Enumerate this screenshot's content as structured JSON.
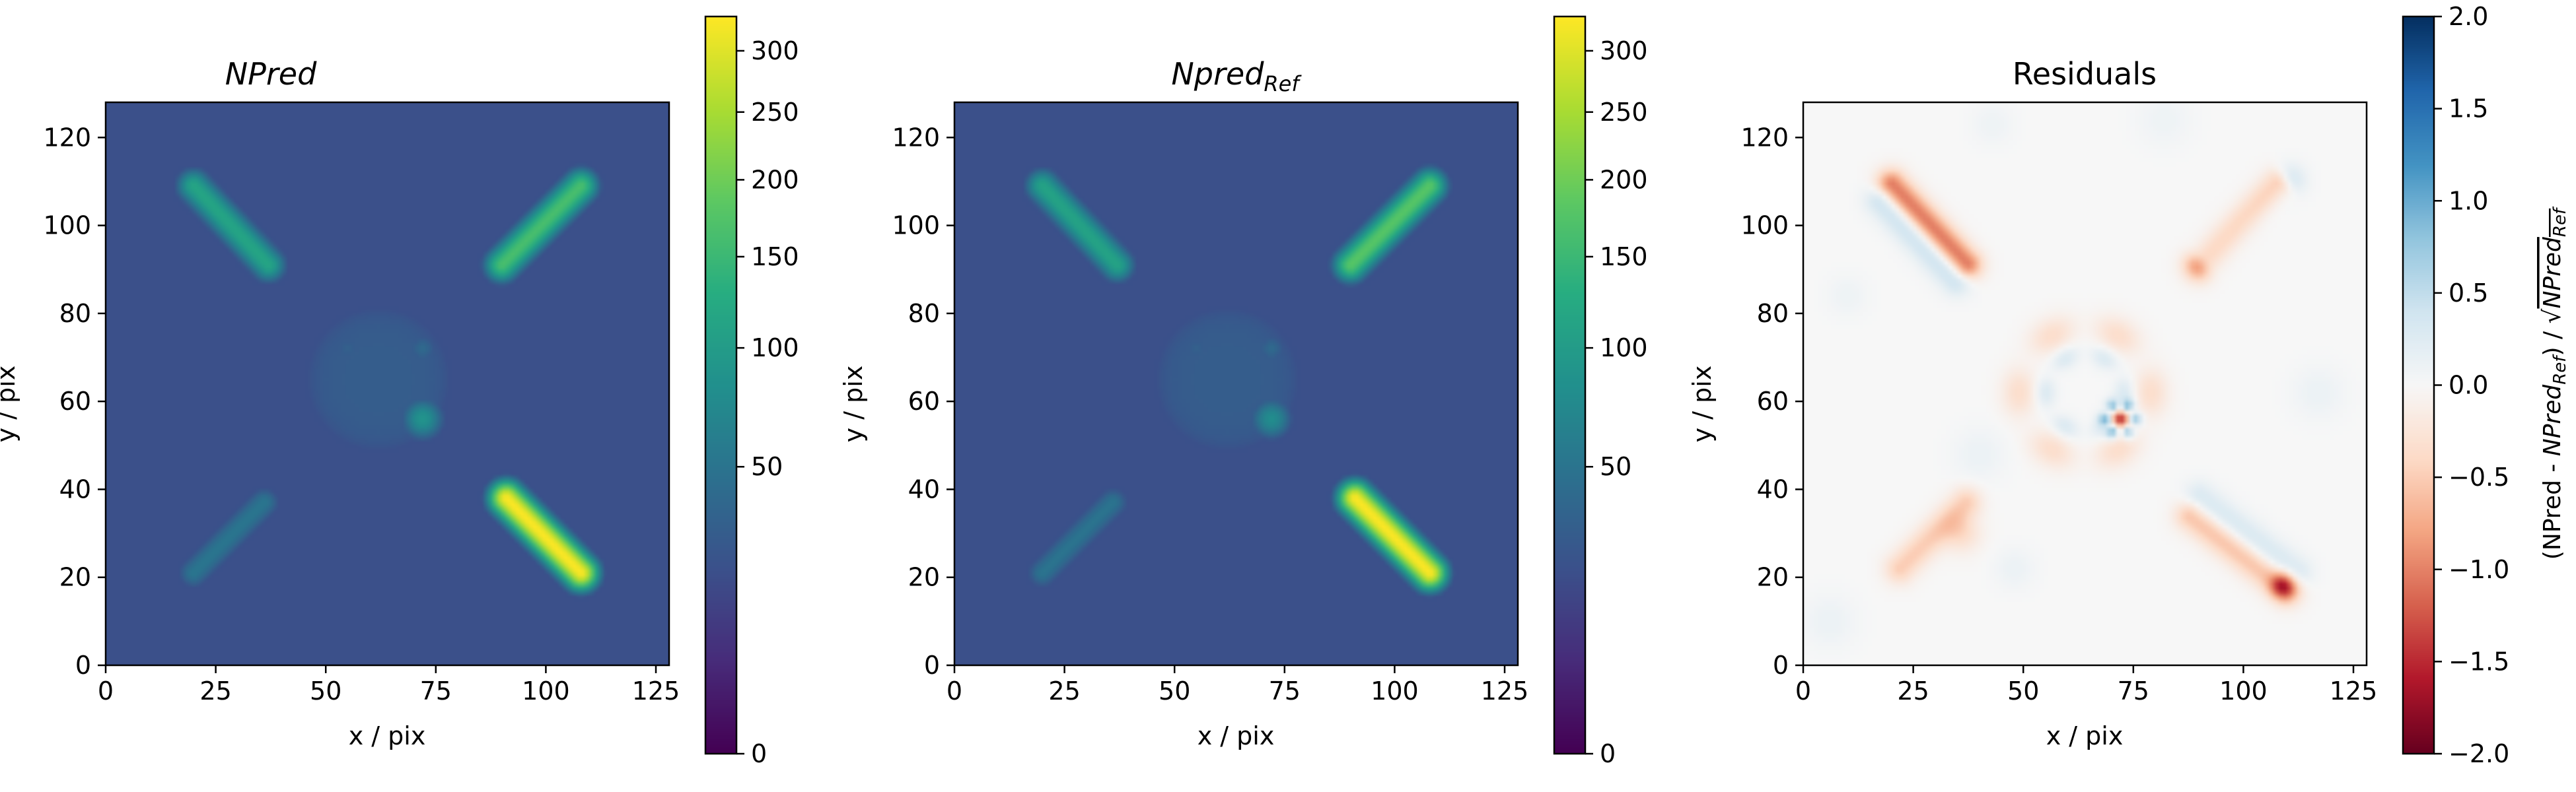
{
  "chart_data": [
    {
      "type": "heatmap",
      "title": "NPred",
      "title_style": "italic",
      "xlabel": "x / pix",
      "ylabel": "y / pix",
      "xlim": [
        0,
        128
      ],
      "ylim": [
        0,
        128
      ],
      "xticks": [
        0,
        25,
        50,
        75,
        100,
        125
      ],
      "yticks": [
        0,
        20,
        40,
        60,
        80,
        100,
        120
      ],
      "colormap": "viridis",
      "colorbar": {
        "scale": "sqrt",
        "range": [
          0,
          330
        ],
        "ticks": [
          0,
          50,
          100,
          150,
          200,
          250,
          300
        ]
      },
      "background_value": 20,
      "features": [
        {
          "shape": "bar",
          "from": [
            20,
            109
          ],
          "to": [
            37,
            91
          ],
          "peak": 115
        },
        {
          "shape": "bar",
          "from": [
            90,
            91
          ],
          "to": [
            108,
            109
          ],
          "peak": 165
        },
        {
          "shape": "bar",
          "from": [
            20,
            21
          ],
          "to": [
            36,
            37
          ],
          "peak": 52
        },
        {
          "shape": "bar",
          "from": [
            91,
            38
          ],
          "to": [
            108,
            21
          ],
          "peak": 330
        },
        {
          "shape": "disk",
          "center": [
            62,
            65
          ],
          "radius": 18,
          "peak": 29
        },
        {
          "shape": "spot",
          "center": [
            72,
            56
          ],
          "radius": 3,
          "peak": 90
        },
        {
          "shape": "spot",
          "center": [
            72,
            72
          ],
          "radius": 2.5,
          "peak": 40
        },
        {
          "shape": "spot",
          "center": [
            55,
            72
          ],
          "radius": 2.5,
          "peak": 33
        }
      ]
    },
    {
      "type": "heatmap",
      "title_base": "Npred",
      "title_sub": "Ref",
      "title_style": "italic",
      "xlabel": "x / pix",
      "ylabel": "y / pix",
      "xlim": [
        0,
        128
      ],
      "ylim": [
        0,
        128
      ],
      "xticks": [
        0,
        25,
        50,
        75,
        100,
        125
      ],
      "yticks": [
        0,
        20,
        40,
        60,
        80,
        100,
        120
      ],
      "colormap": "viridis",
      "colorbar": {
        "scale": "sqrt",
        "range": [
          0,
          330
        ],
        "ticks": [
          0,
          50,
          100,
          150,
          200,
          250,
          300
        ]
      },
      "background_value": 20,
      "features": [
        {
          "shape": "bar",
          "from": [
            20,
            109
          ],
          "to": [
            37,
            91
          ],
          "peak": 112
        },
        {
          "shape": "bar",
          "from": [
            90,
            91
          ],
          "to": [
            108,
            109
          ],
          "peak": 180
        },
        {
          "shape": "bar",
          "from": [
            20,
            21
          ],
          "to": [
            36,
            37
          ],
          "peak": 50
        },
        {
          "shape": "bar",
          "from": [
            91,
            38
          ],
          "to": [
            108,
            21
          ],
          "peak": 330
        },
        {
          "shape": "disk",
          "center": [
            62,
            65
          ],
          "radius": 18,
          "peak": 29
        },
        {
          "shape": "spot",
          "center": [
            72,
            56
          ],
          "radius": 3,
          "peak": 80
        },
        {
          "shape": "spot",
          "center": [
            72,
            72
          ],
          "radius": 2.5,
          "peak": 40
        },
        {
          "shape": "spot",
          "center": [
            55,
            72
          ],
          "radius": 2.5,
          "peak": 33
        }
      ]
    },
    {
      "type": "heatmap",
      "title": "Residuals",
      "title_style": "normal",
      "xlabel": "x / pix",
      "ylabel": "y / pix",
      "xlim": [
        0,
        128
      ],
      "ylim": [
        0,
        128
      ],
      "xticks": [
        0,
        25,
        50,
        75,
        100,
        125
      ],
      "yticks": [
        0,
        20,
        40,
        60,
        80,
        100,
        120
      ],
      "colormap": "RdBu",
      "colorbar": {
        "scale": "linear",
        "range": [
          -2.0,
          2.0
        ],
        "ticks": [
          -2.0,
          -1.5,
          -1.0,
          -0.5,
          0.0,
          0.5,
          1.0,
          1.5,
          2.0
        ],
        "tick_labels": [
          "−2.0",
          "−1.5",
          "−1.0",
          "−0.5",
          "0.0",
          "0.5",
          "1.0",
          "1.5",
          "2.0"
        ],
        "label_pre": "(NPred - ",
        "label_num": "NPred",
        "label_sub": "Ref",
        "label_mid": ") / √",
        "label_den": "NPred",
        "label_den_sub": "Ref"
      },
      "background_value": 0,
      "features": [
        {
          "shape": "bar",
          "from": [
            20,
            109
          ],
          "to": [
            37,
            91
          ],
          "peak": -1.2
        },
        {
          "shape": "bar",
          "from": [
            18,
            106
          ],
          "to": [
            35,
            88
          ],
          "peak": 0.6
        },
        {
          "shape": "bar",
          "from": [
            90,
            91
          ],
          "to": [
            108,
            109
          ],
          "peak": -1.1
        },
        {
          "shape": "bar",
          "from": [
            92,
            93
          ],
          "to": [
            110,
            110
          ],
          "peak": 0.7
        },
        {
          "shape": "bar",
          "from": [
            22,
            22
          ],
          "to": [
            37,
            37
          ],
          "peak": -0.5
        },
        {
          "shape": "bar",
          "from": [
            88,
            34
          ],
          "to": [
            110,
            17
          ],
          "peak": -0.6
        },
        {
          "shape": "bar",
          "from": [
            90,
            38
          ],
          "to": [
            112,
            21
          ],
          "peak": 0.35
        },
        {
          "shape": "ring",
          "center": [
            64,
            62
          ],
          "radius": 15,
          "peak": -0.35
        },
        {
          "shape": "ring",
          "center": [
            64,
            62
          ],
          "radius": 9,
          "peak": 0.3
        },
        {
          "shape": "ring",
          "center": [
            72,
            56
          ],
          "radius": 3.2,
          "peak": 0.9
        },
        {
          "shape": "spot",
          "center": [
            72,
            56
          ],
          "radius": 1.4,
          "peak": -1.6
        },
        {
          "shape": "spot",
          "center": [
            109,
            18
          ],
          "radius": 2,
          "peak": -1.2
        },
        {
          "shape": "spot",
          "center": [
            36,
            30
          ],
          "radius": 3,
          "peak": -0.35
        },
        {
          "shape": "spot",
          "center": [
            40,
            48
          ],
          "radius": 4,
          "peak": 0.12
        },
        {
          "shape": "spot",
          "center": [
            6,
            10
          ],
          "radius": 4,
          "peak": 0.12
        },
        {
          "shape": "spot",
          "center": [
            117,
            62
          ],
          "radius": 4,
          "peak": 0.12
        },
        {
          "shape": "spot",
          "center": [
            48,
            22
          ],
          "radius": 3,
          "peak": 0.12
        },
        {
          "shape": "spot",
          "center": [
            82,
            124
          ],
          "radius": 4,
          "peak": 0.1
        },
        {
          "shape": "spot",
          "center": [
            43,
            123
          ],
          "radius": 3,
          "peak": 0.1
        },
        {
          "shape": "spot",
          "center": [
            10,
            84
          ],
          "radius": 3,
          "peak": 0.1
        }
      ]
    }
  ]
}
